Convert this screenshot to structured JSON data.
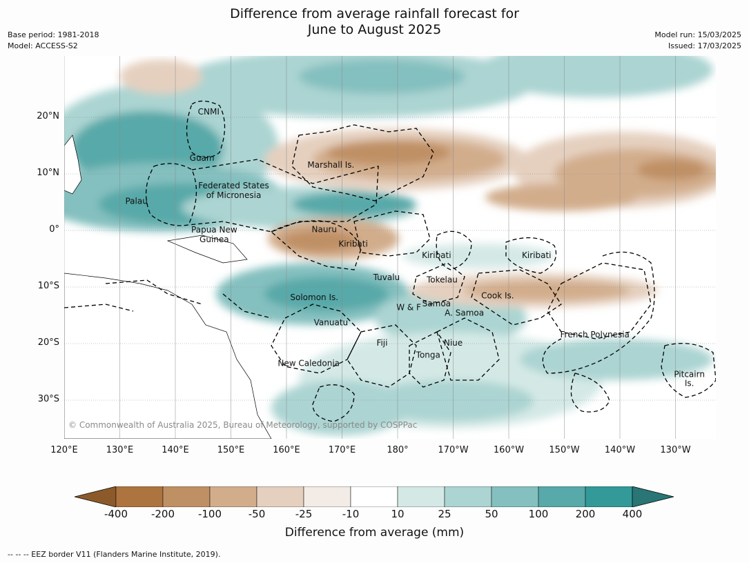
{
  "title_line1": "Difference from average rainfall forecast for",
  "title_line2": "June to August 2025",
  "left_meta": {
    "base_period": "Base period: 1981-2018",
    "model": "Model: ACCESS-S2"
  },
  "right_meta": {
    "model_run": "Model run: 15/03/2025",
    "issued": "Issued: 17/03/2025"
  },
  "map": {
    "lon_ticks": [
      "120°E",
      "130°E",
      "140°E",
      "150°E",
      "160°E",
      "170°E",
      "180°",
      "170°W",
      "160°W",
      "150°W",
      "140°W",
      "130°W"
    ],
    "lat_ticks": [
      "20°N",
      "10°N",
      "0°",
      "10°S",
      "20°S",
      "30°S"
    ],
    "lat_values": [
      20,
      10,
      0,
      -10,
      -20,
      -30
    ],
    "lon_values": [
      120,
      130,
      140,
      150,
      160,
      170,
      180,
      190,
      200,
      210,
      220,
      230
    ],
    "labels": [
      {
        "text": "CNMI",
        "lon": 146,
        "lat": 21
      },
      {
        "text": "Guam",
        "lon": 144.8,
        "lat": 12.8
      },
      {
        "text": "Marshall Is.",
        "lon": 168,
        "lat": 11.6
      },
      {
        "text": "Federated States",
        "lon": 150.5,
        "lat": 7.9
      },
      {
        "text": "of Micronesia",
        "lon": 150.5,
        "lat": 6.2
      },
      {
        "text": "Palau",
        "lon": 133,
        "lat": 5.2
      },
      {
        "text": "Nauru",
        "lon": 166.8,
        "lat": 0.2
      },
      {
        "text": "Papua New",
        "lon": 147,
        "lat": 0.1
      },
      {
        "text": "Guinea",
        "lon": 147,
        "lat": -1.6
      },
      {
        "text": "Kiribati",
        "lon": 172,
        "lat": -2.4
      },
      {
        "text": "Kiribati",
        "lon": 187,
        "lat": -4.4
      },
      {
        "text": "Kiribati",
        "lon": 205,
        "lat": -4.4
      },
      {
        "text": "Tuvalu",
        "lon": 178,
        "lat": -8.3
      },
      {
        "text": "Tokelau",
        "lon": 188,
        "lat": -8.7
      },
      {
        "text": "Cook Is.",
        "lon": 198,
        "lat": -11.5
      },
      {
        "text": "Solomon Is.",
        "lon": 165,
        "lat": -11.8
      },
      {
        "text": "Samoa",
        "lon": 187,
        "lat": -12.9
      },
      {
        "text": "W & F",
        "lon": 182,
        "lat": -13.6
      },
      {
        "text": "A. Samoa",
        "lon": 192,
        "lat": -14.6
      },
      {
        "text": "Vanuatu",
        "lon": 168,
        "lat": -16.3
      },
      {
        "text": "French Polynesia",
        "lon": 215.5,
        "lat": -18.4
      },
      {
        "text": "Fiji",
        "lon": 177.2,
        "lat": -19.9
      },
      {
        "text": "Niue",
        "lon": 190,
        "lat": -19.9
      },
      {
        "text": "Tonga",
        "lon": 185.5,
        "lat": -22
      },
      {
        "text": "New Caledonia",
        "lon": 164,
        "lat": -23.5
      },
      {
        "text": "Pitcairn",
        "lon": 232.5,
        "lat": -25.4
      },
      {
        "text": "Is.",
        "lon": 232.5,
        "lat": -27
      }
    ],
    "copyright": "© Commonwealth of Australia 2025, Bureau of Meteorology, supported by COSPPac"
  },
  "colorbar": {
    "title": "Difference from average (mm)",
    "ticks": [
      "-400",
      "-200",
      "-100",
      "-50",
      "-25",
      "-10",
      "10",
      "25",
      "50",
      "100",
      "200",
      "400"
    ],
    "colors": [
      "#8c5a2a",
      "#ad7440",
      "#c09065",
      "#d2ad8c",
      "#e5d0bf",
      "#f3ebe6",
      "#ffffff",
      "#d4e9e6",
      "#abd4d2",
      "#84c0bf",
      "#58a9a9",
      "#339999",
      "#2a7575"
    ]
  },
  "footer": "--  --  -- EEZ border V11 (Flanders Marine Institute, 2019)."
}
